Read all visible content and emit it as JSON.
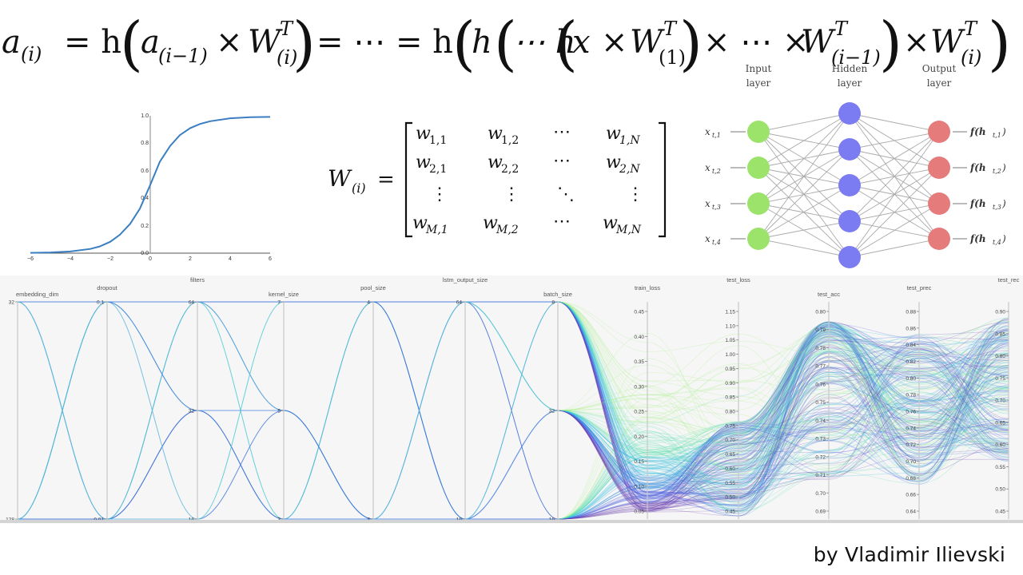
{
  "equation": {
    "lhs": "a",
    "lhs_sub": "(i)",
    "parts": [
      "= h",
      "a",
      "(i−1)",
      "×",
      "W",
      "T",
      "(i)",
      "= ⋯ = h",
      "h",
      "⋯ h",
      "x",
      "×",
      "W",
      "T",
      "(1)",
      "× ⋯ ×",
      "W",
      "T",
      "(i−1)",
      "×",
      "W",
      "T",
      "(i)"
    ]
  },
  "sigmoid_plot": {
    "x_ticks": [
      "−6",
      "−4",
      "−2",
      "0",
      "2",
      "4",
      "6"
    ],
    "y_ticks": [
      "0.0",
      "0.2",
      "0.4",
      "0.6",
      "0.8",
      "1.0"
    ],
    "line_color": "#3a7fc1"
  },
  "matrix": {
    "lhs": "W",
    "lhs_sub": "(i)",
    "equals": "=",
    "rows": [
      [
        "w",
        "1,1",
        "w",
        "1,2",
        "⋯",
        "",
        "w",
        "1,N"
      ],
      [
        "w",
        "2,1",
        "w",
        "2,2",
        "⋯",
        "",
        "w",
        "2,N"
      ],
      [
        "⋮",
        "",
        "⋮",
        "",
        "⋱",
        "",
        "⋮",
        ""
      ],
      [
        "w",
        "M,1",
        "w",
        "M,2",
        "⋯",
        "",
        "w",
        "M,N"
      ]
    ]
  },
  "neural_net": {
    "layer_labels": [
      {
        "line1": "Input",
        "line2": "layer"
      },
      {
        "line1": "Hidden",
        "line2": "layer"
      },
      {
        "line1": "Output",
        "line2": "layer"
      }
    ],
    "inputs": [
      "x",
      "x",
      "x",
      "x"
    ],
    "input_subs": [
      "t,1",
      "t,2",
      "t,3",
      "t,4"
    ],
    "outputs": [
      "f(h",
      "f(h",
      "f(h",
      "f(h"
    ],
    "output_subs": [
      "t,1",
      "t,2",
      "t,3",
      "t,4"
    ],
    "colors": {
      "input": "#9be36a",
      "hidden": "#7b7bf2",
      "output": "#e57b7b"
    }
  },
  "chart_data": {
    "type": "parallel_coordinates",
    "title": "",
    "axes": [
      {
        "name": "embedding_dim",
        "ticks": [
          "32",
          "128"
        ]
      },
      {
        "name": "dropout",
        "ticks": [
          "0.1",
          "0.01"
        ]
      },
      {
        "name": "filters",
        "ticks": [
          "64",
          "32",
          "16"
        ]
      },
      {
        "name": "kernel_size",
        "ticks": [
          "7",
          "5",
          "3"
        ]
      },
      {
        "name": "pool_size",
        "ticks": [
          "4",
          "2"
        ]
      },
      {
        "name": "lstm_output_size",
        "ticks": [
          "64",
          "16"
        ]
      },
      {
        "name": "batch_size",
        "ticks": [
          "8",
          "32",
          "16"
        ]
      },
      {
        "name": "train_loss",
        "ticks": [
          "0.45",
          "0.40",
          "0.35",
          "0.30",
          "0.25",
          "0.20",
          "0.15",
          "0.10",
          "0.05"
        ]
      },
      {
        "name": "test_loss",
        "ticks": [
          "1.15",
          "1.10",
          "1.05",
          "1.00",
          "0.95",
          "0.90",
          "0.85",
          "0.80",
          "0.75",
          "0.70",
          "0.65",
          "0.60",
          "0.55",
          "0.50",
          "0.45"
        ]
      },
      {
        "name": "test_acc",
        "ticks": [
          "0.80",
          "0.79",
          "0.78",
          "0.77",
          "0.76",
          "0.75",
          "0.74",
          "0.73",
          "0.72",
          "0.71",
          "0.70",
          "0.69"
        ]
      },
      {
        "name": "test_prec",
        "ticks": [
          "0.88",
          "0.86",
          "0.84",
          "0.82",
          "0.80",
          "0.78",
          "0.76",
          "0.74",
          "0.72",
          "0.70",
          "0.68",
          "0.66",
          "0.64"
        ]
      },
      {
        "name": "test_rec",
        "ticks": [
          "0.90",
          "0.85",
          "0.80",
          "0.75",
          "0.70",
          "0.65",
          "0.60",
          "0.55",
          "0.50",
          "0.45"
        ]
      }
    ],
    "colormap": [
      "#6a3fb0",
      "#4a5fe0",
      "#3b8fe0",
      "#34bde0",
      "#5ee0b0",
      "#a8f08a",
      "#f0c890",
      "#e0a0a0"
    ],
    "grid": false,
    "legend": "none"
  },
  "credit": "by Vladimir Ilievski"
}
